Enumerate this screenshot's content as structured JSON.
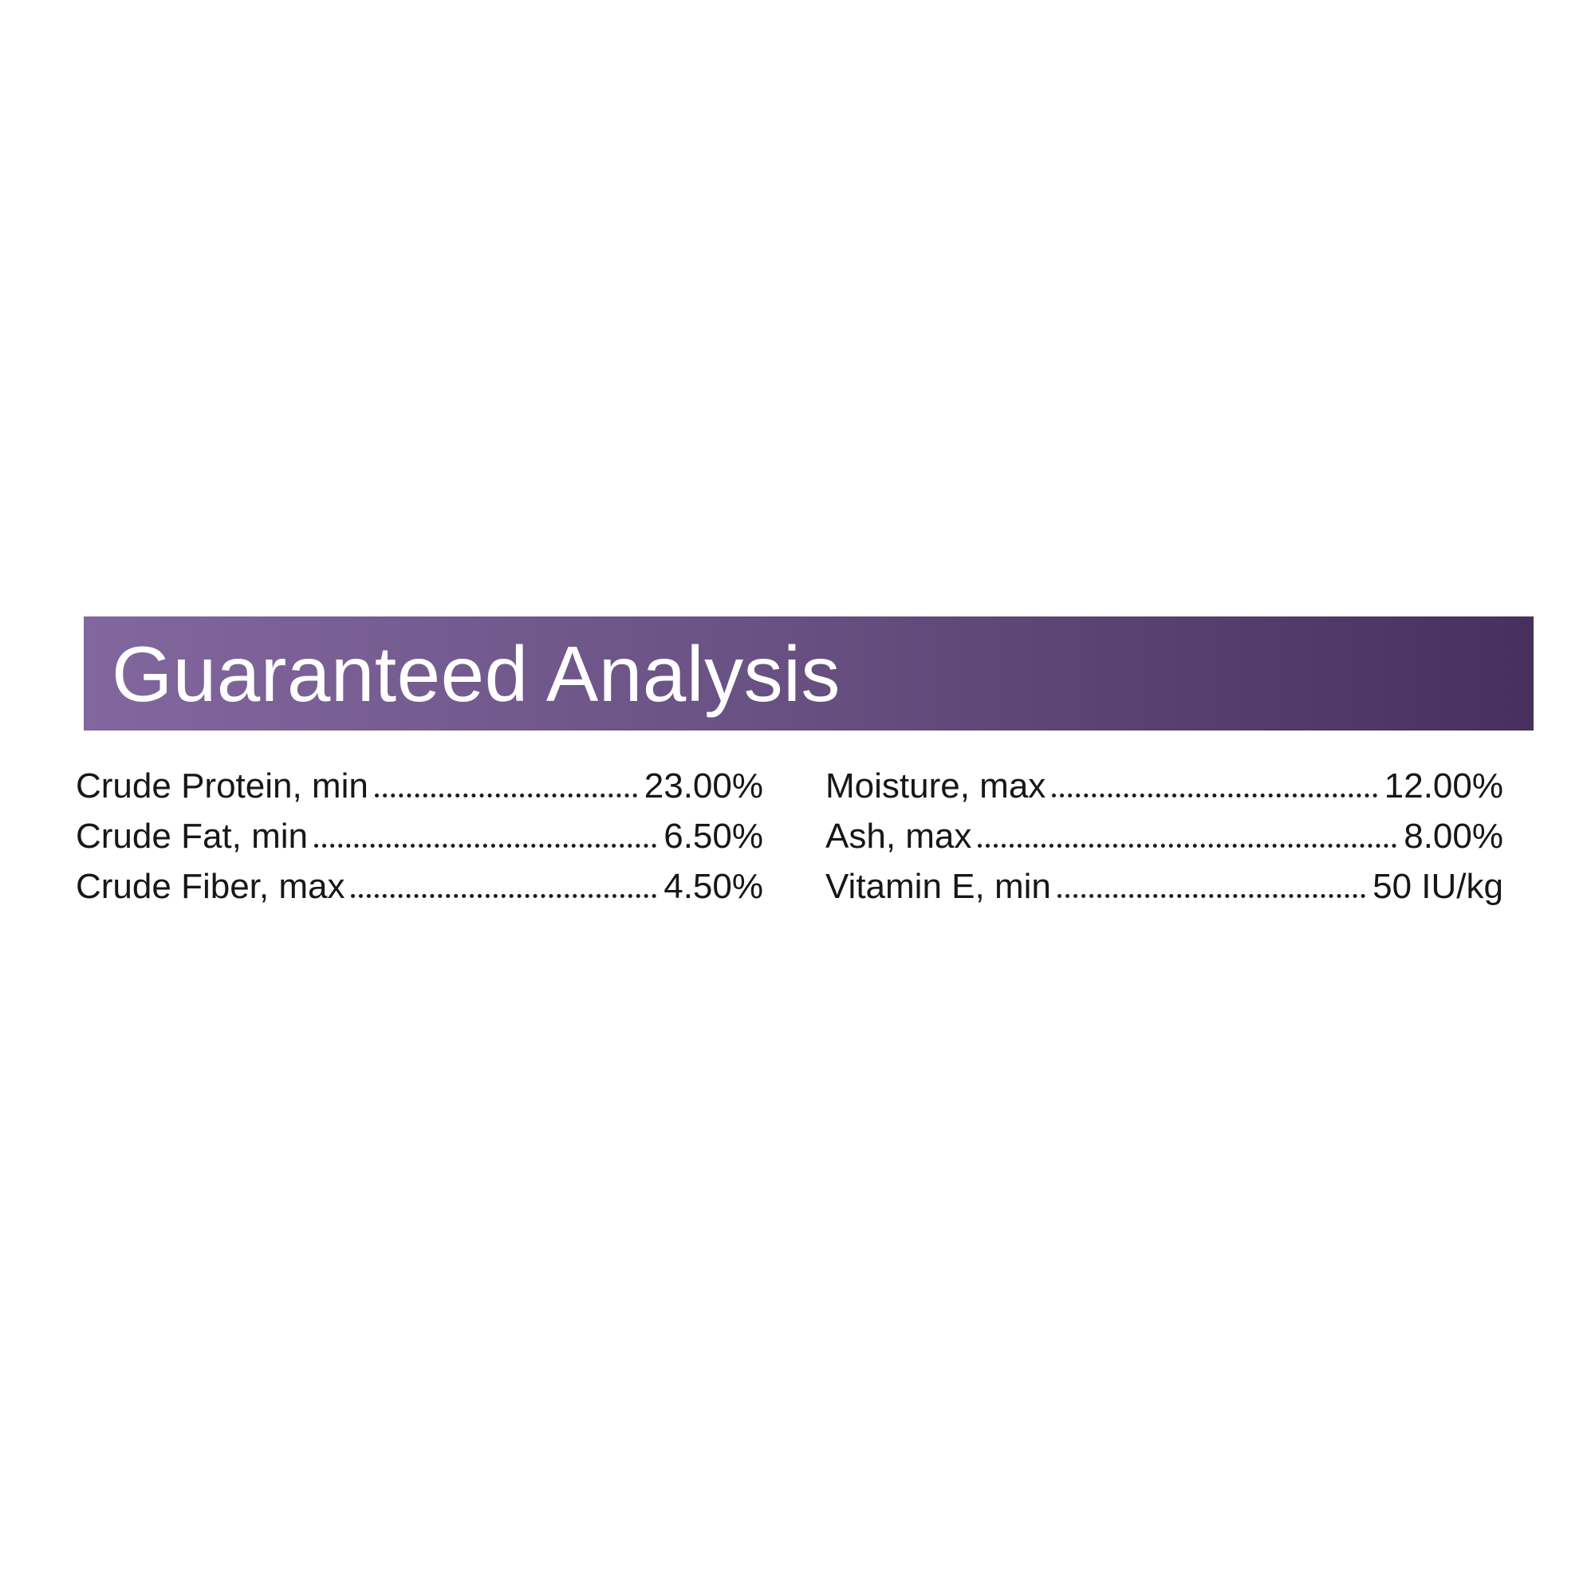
{
  "banner": {
    "title": "Guaranteed Analysis",
    "gradient_left": "#82679e",
    "gradient_right": "#48305e",
    "text_color": "#ffffff"
  },
  "analysis": {
    "left_column": [
      {
        "label": "Crude Protein, min",
        "value": "23.00%"
      },
      {
        "label": "Crude Fat, min",
        "value": "6.50%"
      },
      {
        "label": "Crude Fiber, max",
        "value": "4.50%"
      }
    ],
    "right_column": [
      {
        "label": "Moisture, max",
        "value": "12.00%"
      },
      {
        "label": "Ash, max",
        "value": "8.00%"
      },
      {
        "label": "Vitamin E, min",
        "value": "50 IU/kg"
      }
    ]
  }
}
